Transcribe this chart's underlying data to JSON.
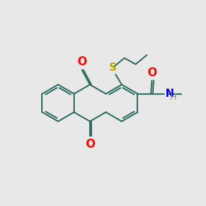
{
  "background_color": "#e8e8e8",
  "bond_color": "#2d6b5e",
  "bond_width": 1.5,
  "oxygen_color": "#ff0000",
  "sulfur_color": "#bbaa00",
  "nitrogen_color": "#0000cc",
  "text_fontsize": 10,
  "fig_width": 3.0,
  "fig_height": 3.0,
  "dpi": 100,
  "xlim": [
    0,
    10
  ],
  "ylim": [
    0,
    10
  ]
}
